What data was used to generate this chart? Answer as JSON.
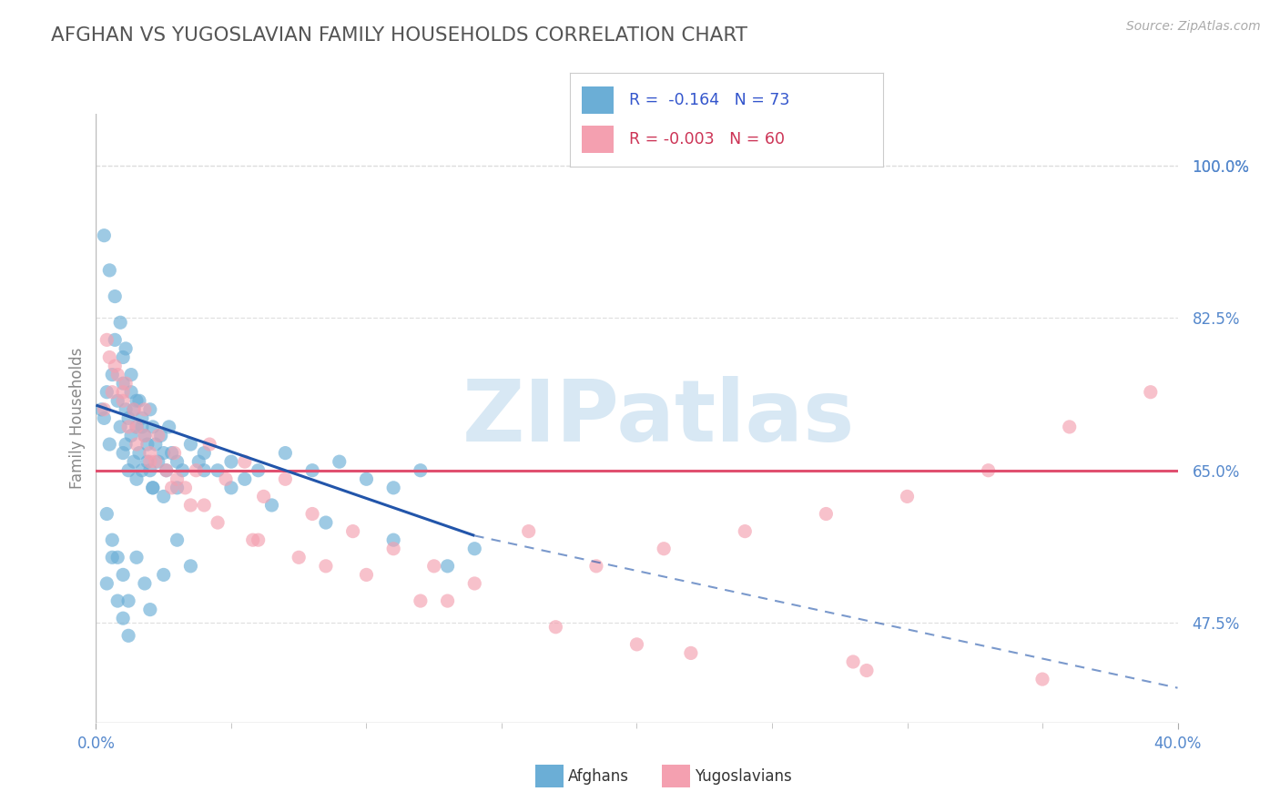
{
  "title": "AFGHAN VS YUGOSLAVIAN FAMILY HOUSEHOLDS CORRELATION CHART",
  "source": "Source: ZipAtlas.com",
  "ylabel": "Family Households",
  "xlim": [
    0.0,
    40.0
  ],
  "ylim": [
    36.0,
    106.0
  ],
  "ytick_vals": [
    47.5,
    65.0,
    82.5,
    100.0
  ],
  "ytick_labels": [
    "47.5%",
    "65.0%",
    "82.5%",
    "100.0%"
  ],
  "xtick_vals": [
    0.0,
    40.0
  ],
  "xtick_labels": [
    "0.0%",
    "40.0%"
  ],
  "afghan_color": "#6baed6",
  "yugo_color": "#f4a0b0",
  "afghan_line_color": "#2255aa",
  "yugo_line_color": "#e05070",
  "afghan_R": -0.164,
  "afghan_N": 73,
  "yugo_R": -0.003,
  "yugo_N": 60,
  "legend_R_color_afghan": "#3355cc",
  "legend_R_color_yugo": "#cc3355",
  "background_color": "#ffffff",
  "watermark": "ZIPatlas",
  "watermark_color": "#d8e8f4",
  "title_color": "#555555",
  "tick_label_color": "#5588cc",
  "ylabel_color": "#888888",
  "source_color": "#aaaaaa",
  "grid_color": "#dddddd",
  "afghan_scatter_x": [
    0.2,
    0.3,
    0.4,
    0.5,
    0.6,
    0.7,
    0.8,
    0.9,
    1.0,
    1.0,
    1.0,
    1.1,
    1.1,
    1.2,
    1.2,
    1.3,
    1.3,
    1.4,
    1.4,
    1.5,
    1.5,
    1.6,
    1.6,
    1.7,
    1.7,
    1.8,
    1.9,
    2.0,
    2.0,
    2.1,
    2.1,
    2.2,
    2.3,
    2.4,
    2.5,
    2.5,
    2.6,
    2.7,
    2.8,
    3.0,
    3.0,
    3.2,
    3.5,
    3.8,
    4.0,
    4.5,
    5.0,
    5.5,
    6.0,
    7.0,
    8.0,
    9.0,
    10.0,
    11.0,
    12.0,
    0.4,
    0.6,
    0.8,
    1.0,
    1.2,
    1.5,
    1.8,
    2.0,
    2.5,
    3.0,
    3.5,
    4.0,
    5.0,
    6.5,
    8.5,
    11.0,
    13.0,
    14.0
  ],
  "afghan_scatter_y": [
    72.0,
    71.0,
    74.0,
    68.0,
    76.0,
    80.0,
    73.0,
    70.0,
    67.0,
    75.0,
    78.0,
    72.0,
    68.0,
    71.0,
    65.0,
    74.0,
    69.0,
    72.0,
    66.0,
    70.0,
    64.0,
    73.0,
    67.0,
    71.0,
    65.0,
    69.0,
    68.0,
    72.0,
    65.0,
    70.0,
    63.0,
    68.0,
    66.0,
    69.0,
    67.0,
    62.0,
    65.0,
    70.0,
    67.0,
    66.0,
    63.0,
    65.0,
    68.0,
    66.0,
    67.0,
    65.0,
    66.0,
    64.0,
    65.0,
    67.0,
    65.0,
    66.0,
    64.0,
    63.0,
    65.0,
    60.0,
    57.0,
    55.0,
    53.0,
    50.0,
    55.0,
    52.0,
    49.0,
    53.0,
    57.0,
    54.0,
    65.0,
    63.0,
    61.0,
    59.0,
    57.0,
    54.0,
    56.0
  ],
  "afghan_scatter_x2": [
    0.3,
    0.5,
    0.7,
    0.9,
    1.1,
    1.3,
    1.5,
    1.7,
    1.9,
    2.1,
    0.4,
    0.6,
    0.8,
    1.0,
    1.2
  ],
  "afghan_scatter_y2": [
    92.0,
    88.0,
    85.0,
    82.0,
    79.0,
    76.0,
    73.0,
    70.0,
    66.0,
    63.0,
    52.0,
    55.0,
    50.0,
    48.0,
    46.0
  ],
  "yugo_scatter_x": [
    0.3,
    0.6,
    0.8,
    1.0,
    1.2,
    1.5,
    1.8,
    2.0,
    2.3,
    2.6,
    2.9,
    3.3,
    3.7,
    4.2,
    4.8,
    5.5,
    6.2,
    7.0,
    8.0,
    9.5,
    11.0,
    12.5,
    14.0,
    16.0,
    18.5,
    21.0,
    24.0,
    27.0,
    30.0,
    33.0,
    36.0,
    39.0
  ],
  "yugo_scatter_y": [
    72.0,
    74.0,
    76.0,
    73.0,
    70.0,
    68.0,
    72.0,
    66.0,
    69.0,
    65.0,
    67.0,
    63.0,
    65.0,
    68.0,
    64.0,
    66.0,
    62.0,
    64.0,
    60.0,
    58.0,
    56.0,
    54.0,
    52.0,
    58.0,
    54.0,
    56.0,
    58.0,
    60.0,
    62.0,
    65.0,
    70.0,
    74.0
  ],
  "yugo_scatter_x2": [
    0.4,
    0.7,
    1.1,
    1.4,
    1.8,
    2.2,
    2.8,
    3.5,
    4.5,
    5.8,
    7.5,
    10.0,
    13.0,
    17.0,
    22.0,
    28.0,
    35.0,
    0.5,
    1.0,
    1.5,
    2.0,
    3.0,
    4.0,
    6.0,
    8.5,
    12.0,
    20.0,
    28.5
  ],
  "yugo_scatter_y2": [
    80.0,
    77.0,
    75.0,
    72.0,
    69.0,
    66.0,
    63.0,
    61.0,
    59.0,
    57.0,
    55.0,
    53.0,
    50.0,
    47.0,
    44.0,
    43.0,
    41.0,
    78.0,
    74.0,
    70.0,
    67.0,
    64.0,
    61.0,
    57.0,
    54.0,
    50.0,
    45.0,
    42.0
  ],
  "afghan_line_x0": 0.0,
  "afghan_line_y0": 72.5,
  "afghan_line_x1": 14.0,
  "afghan_line_y1": 57.5,
  "afghan_dash_x0": 14.0,
  "afghan_dash_y0": 57.5,
  "afghan_dash_x1": 40.0,
  "afghan_dash_y1": 40.0,
  "yugo_line_y": 65.0
}
